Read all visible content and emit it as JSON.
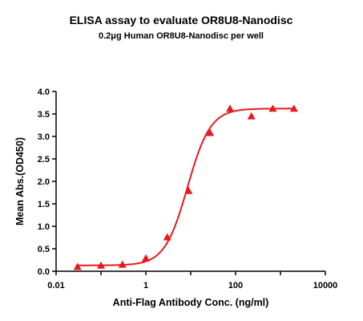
{
  "chart_data": {
    "type": "scatter",
    "title": "ELISA assay to evaluate OR8U8-Nanodisc",
    "subtitle": "0.2μg Human OR8U8-Nanodisc per well",
    "xlabel": "Anti-Flag Antibody Conc. (ng/ml)",
    "ylabel": "Mean Abs.(OD450)",
    "x_scale": "log",
    "xlim": [
      0.01,
      10000
    ],
    "ylim": [
      0.0,
      4.0
    ],
    "x_ticks": [
      "0.01",
      "1",
      "100",
      "10000"
    ],
    "y_ticks": [
      "0.0",
      "0.5",
      "1.0",
      "1.5",
      "2.0",
      "2.5",
      "3.0",
      "3.5",
      "4.0"
    ],
    "grid": false,
    "series_color": "#e8191c",
    "marker": "triangle",
    "points": [
      {
        "x": 0.03,
        "y": 0.1
      },
      {
        "x": 0.1,
        "y": 0.13
      },
      {
        "x": 0.3,
        "y": 0.15
      },
      {
        "x": 1.0,
        "y": 0.29
      },
      {
        "x": 3.0,
        "y": 0.76
      },
      {
        "x": 9.0,
        "y": 1.79
      },
      {
        "x": 27.0,
        "y": 3.08
      },
      {
        "x": 75.0,
        "y": 3.62
      },
      {
        "x": 225.0,
        "y": 3.45
      },
      {
        "x": 675.0,
        "y": 3.62
      },
      {
        "x": 2000.0,
        "y": 3.62
      }
    ],
    "fit_curve": {
      "model": "4PL",
      "bottom": 0.13,
      "top": 3.62,
      "ec50": 8.5,
      "hill": 1.7
    }
  }
}
